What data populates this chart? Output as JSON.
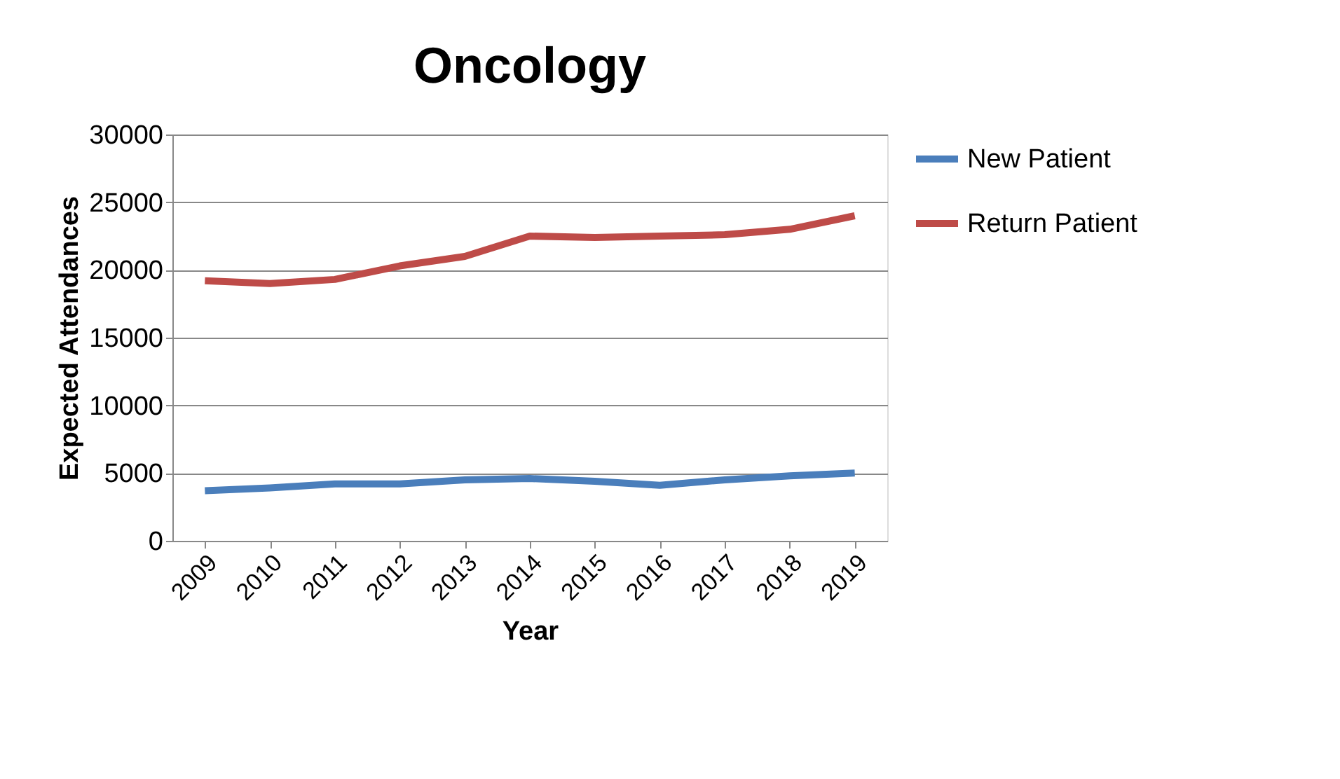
{
  "chart_data": {
    "type": "line",
    "title": "Oncology",
    "xlabel": "Year",
    "ylabel": "Expected Attendances",
    "categories": [
      "2009",
      "2010",
      "2011",
      "2012",
      "2013",
      "2014",
      "2015",
      "2016",
      "2017",
      "2018",
      "2019"
    ],
    "series": [
      {
        "name": "New Patient",
        "color": "#4a7ebb",
        "values": [
          3700,
          3900,
          4200,
          4200,
          4500,
          4600,
          4400,
          4100,
          4500,
          4800,
          5000
        ]
      },
      {
        "name": "Return Patient",
        "color": "#be4b48",
        "values": [
          19200,
          19000,
          19300,
          20300,
          21000,
          22500,
          22400,
          22500,
          22600,
          23000,
          24000
        ]
      }
    ],
    "ylim": [
      0,
      30000
    ],
    "yticks": [
      0,
      5000,
      10000,
      15000,
      20000,
      25000,
      30000
    ],
    "grid": "y",
    "legend": "right",
    "marker": "none",
    "line_style": "solid"
  }
}
